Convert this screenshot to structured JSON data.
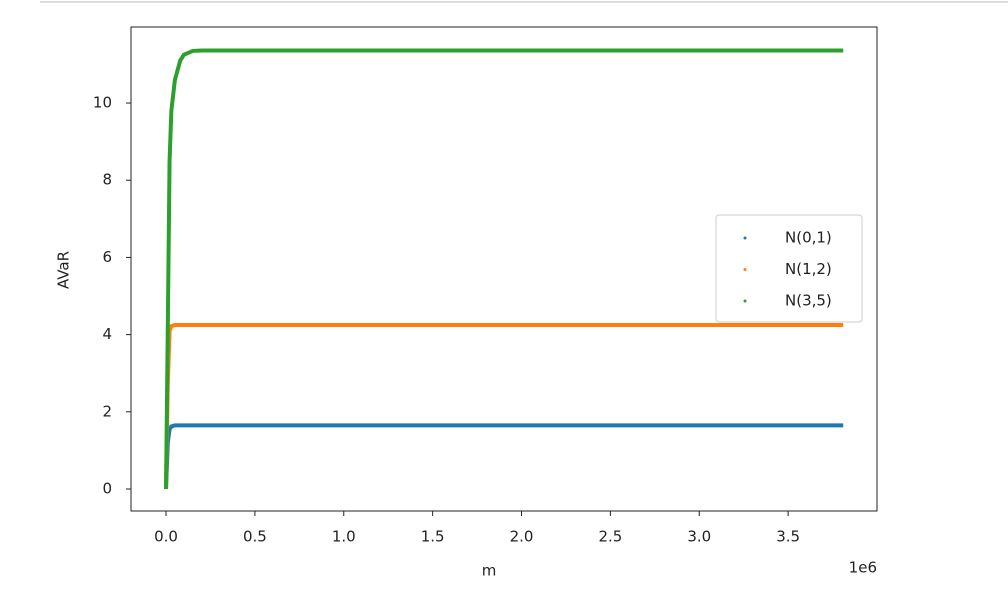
{
  "chart_data": {
    "type": "line",
    "x_label": "m",
    "y_label": "AVaR",
    "x_offset_label": "1e6",
    "x": [
      0,
      0.01,
      0.02,
      0.03,
      0.05,
      0.08,
      0.1,
      0.15,
      0.2,
      0.5,
      1.0,
      1.5,
      2.0,
      2.5,
      3.0,
      3.5,
      3.81
    ],
    "series": [
      {
        "name": "N(0,1)",
        "color": "#1f77b4",
        "values": [
          0,
          1.2,
          1.55,
          1.62,
          1.65,
          1.65,
          1.65,
          1.65,
          1.65,
          1.65,
          1.65,
          1.65,
          1.65,
          1.65,
          1.65,
          1.65,
          1.65
        ]
      },
      {
        "name": "N(1,2)",
        "color": "#ff7f0e",
        "values": [
          0,
          2.7,
          4.1,
          4.22,
          4.25,
          4.25,
          4.25,
          4.25,
          4.25,
          4.25,
          4.25,
          4.25,
          4.25,
          4.25,
          4.25,
          4.25,
          4.25
        ]
      },
      {
        "name": "N(3,5)",
        "color": "#2ca02c",
        "values": [
          0,
          4.2,
          8.5,
          9.8,
          10.6,
          11.1,
          11.25,
          11.35,
          11.36,
          11.36,
          11.36,
          11.36,
          11.36,
          11.36,
          11.36,
          11.36,
          11.36
        ]
      }
    ],
    "xlim": [
      -0.197,
      4.0
    ],
    "ylim": [
      -0.57,
      11.97
    ],
    "xticks": [
      {
        "value": 0,
        "label": "0.0"
      },
      0.5,
      {
        "value": 1,
        "label": "1.0"
      },
      1.5,
      {
        "value": 2,
        "label": "2.0"
      },
      2.5,
      {
        "value": 3,
        "label": "3.0"
      },
      3.5
    ],
    "yticks": [
      0,
      2,
      4,
      6,
      8,
      10
    ],
    "legend": "right"
  }
}
